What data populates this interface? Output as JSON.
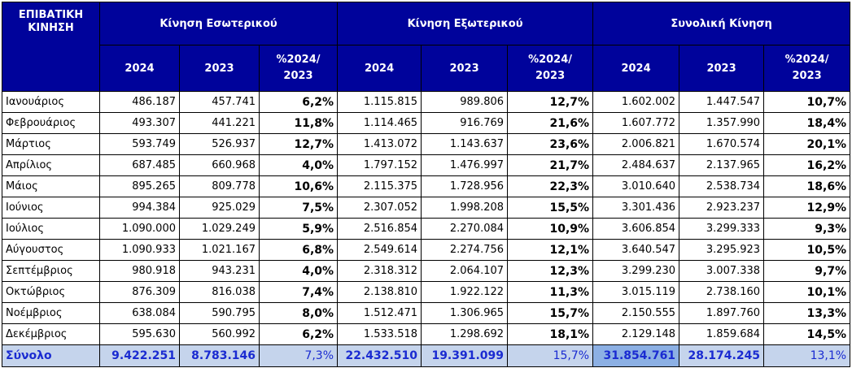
{
  "header": {
    "corner_line1": "ΕΠΙΒΑΤΙΚΗ",
    "corner_line2": "ΚΙΝΗΣΗ",
    "groups": [
      "Κίνηση Εσωτερικού",
      "Κίνηση Εξωτερικού",
      "Συνολική Κίνηση"
    ],
    "sub": {
      "year_current": "2024",
      "year_previous": "2023",
      "pct_line1": "%2024/",
      "pct_line2": "2023"
    }
  },
  "rows": [
    {
      "month": "Ιανουάριος",
      "values": [
        "486.187",
        "457.741",
        "6,2%",
        "1.115.815",
        "989.806",
        "12,7%",
        "1.602.002",
        "1.447.547",
        "10,7%"
      ]
    },
    {
      "month": "Φεβρουάριος",
      "values": [
        "493.307",
        "441.221",
        "11,8%",
        "1.114.465",
        "916.769",
        "21,6%",
        "1.607.772",
        "1.357.990",
        "18,4%"
      ]
    },
    {
      "month": "Μάρτιος",
      "values": [
        "593.749",
        "526.937",
        "12,7%",
        "1.413.072",
        "1.143.637",
        "23,6%",
        "2.006.821",
        "1.670.574",
        "20,1%"
      ]
    },
    {
      "month": "Απρίλιος",
      "values": [
        "687.485",
        "660.968",
        "4,0%",
        "1.797.152",
        "1.476.997",
        "21,7%",
        "2.484.637",
        "2.137.965",
        "16,2%"
      ]
    },
    {
      "month": "Μάιος",
      "values": [
        "895.265",
        "809.778",
        "10,6%",
        "2.115.375",
        "1.728.956",
        "22,3%",
        "3.010.640",
        "2.538.734",
        "18,6%"
      ]
    },
    {
      "month": "Ιούνιος",
      "values": [
        "994.384",
        "925.029",
        "7,5%",
        "2.307.052",
        "1.998.208",
        "15,5%",
        "3.301.436",
        "2.923.237",
        "12,9%"
      ]
    },
    {
      "month": "Ιούλιος",
      "values": [
        "1.090.000",
        "1.029.249",
        "5,9%",
        "2.516.854",
        "2.270.084",
        "10,9%",
        "3.606.854",
        "3.299.333",
        "9,3%"
      ]
    },
    {
      "month": "Αύγουστος",
      "values": [
        "1.090.933",
        "1.021.167",
        "6,8%",
        "2.549.614",
        "2.274.756",
        "12,1%",
        "3.640.547",
        "3.295.923",
        "10,5%"
      ]
    },
    {
      "month": "Σεπτέμβριος",
      "values": [
        "980.918",
        "943.231",
        "4,0%",
        "2.318.312",
        "2.064.107",
        "12,3%",
        "3.299.230",
        "3.007.338",
        "9,7%"
      ]
    },
    {
      "month": "Οκτώβριος",
      "values": [
        "876.309",
        "816.038",
        "7,4%",
        "2.138.810",
        "1.922.122",
        "11,3%",
        "3.015.119",
        "2.738.160",
        "10,1%"
      ]
    },
    {
      "month": "Νοέμβριος",
      "values": [
        "638.084",
        "590.795",
        "8,0%",
        "1.512.471",
        "1.306.965",
        "15,7%",
        "2.150.555",
        "1.897.760",
        "13,3%"
      ]
    },
    {
      "month": "Δεκέμβριος",
      "values": [
        "595.630",
        "560.992",
        "6,2%",
        "1.533.518",
        "1.298.692",
        "18,1%",
        "2.129.148",
        "1.859.684",
        "14,5%"
      ]
    }
  ],
  "total": {
    "label": "Σύνολο",
    "values": [
      "9.422.251",
      "8.783.146",
      "7,3%",
      "22.432.510",
      "19.391.099",
      "15,7%",
      "31.854.761",
      "28.174.245",
      "13,1%"
    ]
  },
  "colors": {
    "header_bg": "#00039b",
    "header_text": "#ffffff",
    "total_bg": "#c5d4ec",
    "total_highlight_bg": "#8cb0e4",
    "total_text": "#1a2bd1"
  }
}
